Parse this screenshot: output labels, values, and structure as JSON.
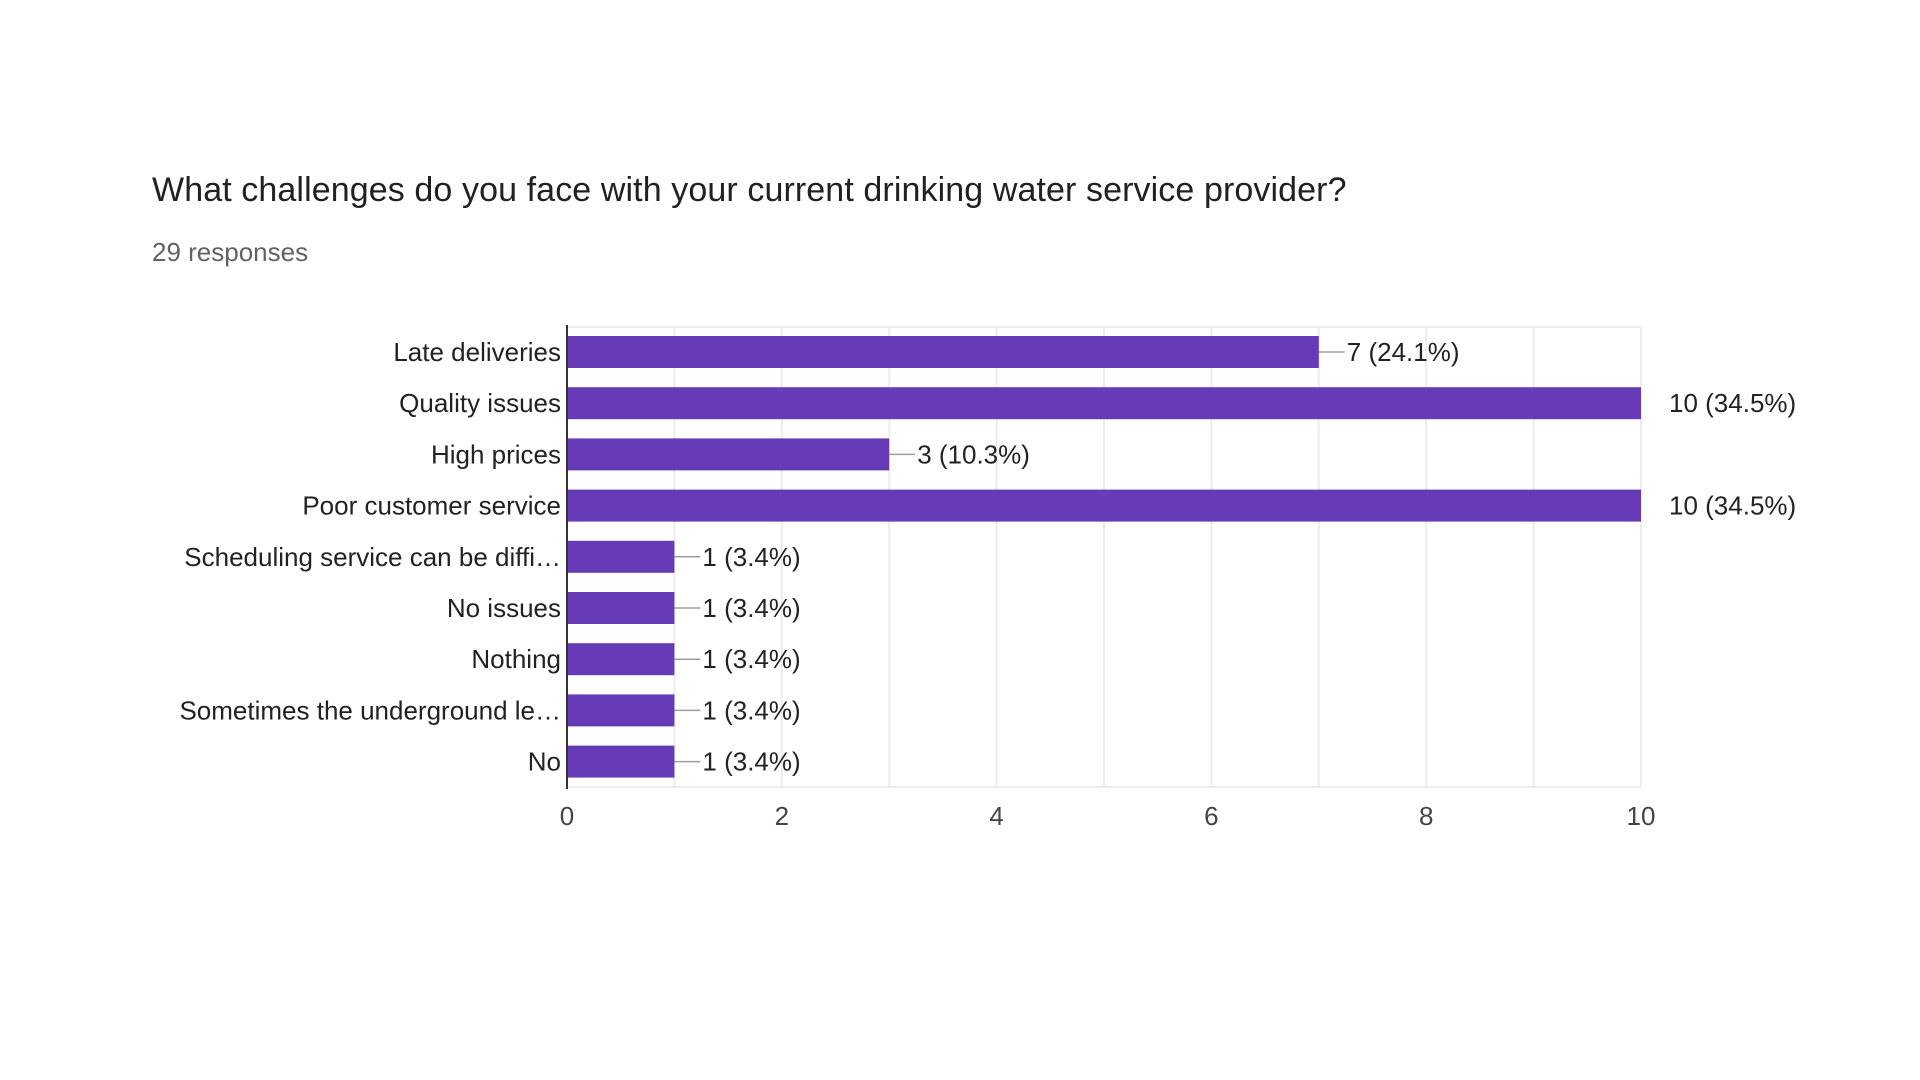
{
  "question": {
    "title": "What challenges do you face with your current drinking water service provider?",
    "responses": "29 responses"
  },
  "colors": {
    "bar": "#673ab7",
    "grid": "#ececec",
    "axis": "#333333"
  },
  "chart_data": {
    "type": "bar",
    "orientation": "horizontal",
    "title": "What challenges do you face with your current drinking water service provider?",
    "subtitle": "29 responses",
    "categories": [
      "Late deliveries",
      "Quality issues",
      "High prices",
      "Poor customer service",
      "Scheduling service can be diffi…",
      "No issues",
      "Nothing",
      "Sometimes the underground le…",
      "No"
    ],
    "values": [
      7,
      10,
      3,
      10,
      1,
      1,
      1,
      1,
      1
    ],
    "value_labels": [
      "7 (24.1%)",
      "10 (34.5%)",
      "3 (10.3%)",
      "10 (34.5%)",
      "1 (3.4%)",
      "1 (3.4%)",
      "1 (3.4%)",
      "1 (3.4%)",
      "1 (3.4%)"
    ],
    "xlim": [
      0,
      10
    ],
    "xticks": [
      0,
      2,
      4,
      6,
      8,
      10
    ],
    "xlabel": "",
    "ylabel": "",
    "grid": true,
    "legend": "none"
  }
}
